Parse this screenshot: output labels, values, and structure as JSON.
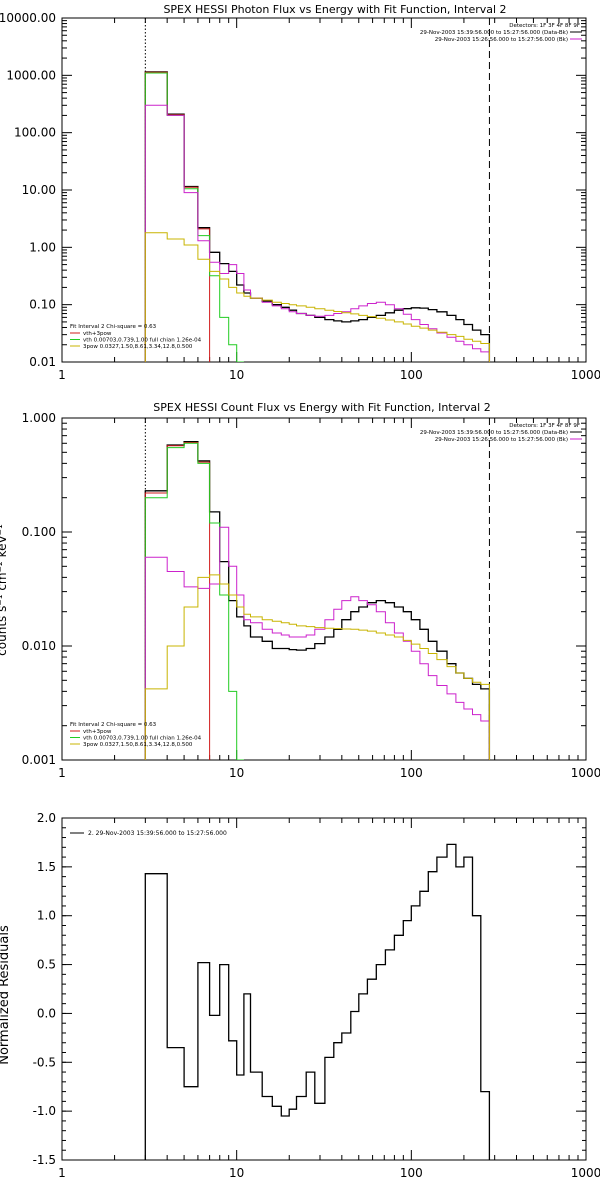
{
  "chart_data": [
    {
      "type": "line",
      "title": "SPEX HESSI Photon Flux vs Energy with Fit Function, Interval 2",
      "xscale": "log",
      "yscale": "log",
      "xlim": [
        1,
        1000
      ],
      "ylim": [
        0.01,
        10000
      ],
      "x_ticks": [
        {
          "v": 1,
          "label": "1"
        },
        {
          "v": 10,
          "label": "10"
        },
        {
          "v": 100,
          "label": "100"
        },
        {
          "v": 1000,
          "label": "1000"
        }
      ],
      "y_ticks": [
        {
          "v": 0.01,
          "label": "0.01"
        },
        {
          "v": 0.1,
          "label": "0.10"
        },
        {
          "v": 1,
          "label": "1.00"
        },
        {
          "v": 10,
          "label": "10.00"
        },
        {
          "v": 100,
          "label": "100.00"
        },
        {
          "v": 1000,
          "label": "1000.00"
        },
        {
          "v": 10000,
          "label": "10000.00"
        }
      ],
      "vlines": [
        {
          "x": 3,
          "style": "dotted"
        },
        {
          "x": 280,
          "style": "dashed"
        }
      ],
      "legend_top": [
        "Detectors: 1F 3F 4F 8F 9F",
        "29-Nov-2003 15:39:56.000 to 15:27:56.000 (Data-Bk)",
        "29-Nov-2003 15:26:56.000 to 15:27:56.000 (Bk)"
      ],
      "legend_bottom_title": "Fit Interval 2   Chi-square = 0.63",
      "legend_bottom": [
        {
          "label": "vth+3pow",
          "color": "#d11d1d"
        },
        {
          "label": "vth 0.00703,0.739,1.00  full chian 1.26e-04",
          "color": "#22cc22"
        },
        {
          "label": "3pow 0.0327,1.50,8.61,3.34,12.8,0.500",
          "color": "#c8b400"
        }
      ],
      "edges": [
        3,
        4,
        5,
        6,
        7,
        8,
        9,
        10,
        11,
        12,
        14,
        16,
        18,
        20,
        22,
        25,
        28,
        32,
        36,
        40,
        45,
        50,
        56,
        63,
        71,
        80,
        90,
        100,
        112,
        125,
        140,
        160,
        180,
        200,
        224,
        250,
        280
      ],
      "series": [
        {
          "color": "#000000",
          "width": 1.3,
          "values": [
            1150,
            210,
            11.5,
            2.2,
            0.82,
            0.52,
            0.38,
            0.22,
            0.16,
            0.13,
            0.115,
            0.1,
            0.09,
            0.08,
            0.07,
            0.065,
            0.06,
            0.055,
            0.052,
            0.05,
            0.052,
            0.055,
            0.06,
            0.065,
            0.072,
            0.08,
            0.085,
            0.088,
            0.087,
            0.082,
            0.075,
            0.065,
            0.055,
            0.045,
            0.036,
            0.03
          ]
        },
        {
          "color": "#d11d1d",
          "width": 1.0,
          "values": [
            1130,
            205,
            11.2,
            2.1,
            null,
            null,
            null,
            null,
            null,
            null,
            null,
            null,
            null,
            null,
            null,
            null,
            null,
            null,
            null,
            null,
            null,
            null,
            null,
            null,
            null,
            null,
            null,
            null,
            null,
            null,
            null,
            null,
            null,
            null,
            null,
            null
          ]
        },
        {
          "color": "#22cc22",
          "width": 1.0,
          "values": [
            1100,
            200,
            10.5,
            1.6,
            0.32,
            0.06,
            0.02,
            0.008,
            null,
            null,
            null,
            null,
            null,
            null,
            null,
            null,
            null,
            null,
            null,
            null,
            null,
            null,
            null,
            null,
            null,
            null,
            null,
            null,
            null,
            null,
            null,
            null,
            null,
            null,
            null,
            null
          ]
        },
        {
          "color": "#cc22cc",
          "width": 1.0,
          "values": [
            300,
            200,
            9,
            1.3,
            0.55,
            0.35,
            0.5,
            0.35,
            0.18,
            0.13,
            0.11,
            0.095,
            0.085,
            0.075,
            0.07,
            0.065,
            0.063,
            0.065,
            0.07,
            0.075,
            0.085,
            0.095,
            0.105,
            0.11,
            0.1,
            0.085,
            0.068,
            0.055,
            0.045,
            0.038,
            0.032,
            0.027,
            0.023,
            0.02,
            0.017,
            0.015
          ]
        },
        {
          "color": "#c8b400",
          "width": 1.0,
          "values": [
            1.8,
            1.4,
            1.1,
            0.62,
            0.38,
            0.28,
            0.2,
            0.16,
            0.14,
            0.13,
            0.12,
            0.11,
            0.105,
            0.1,
            0.095,
            0.09,
            0.085,
            0.08,
            0.076,
            0.072,
            0.069,
            0.065,
            0.062,
            0.058,
            0.054,
            0.05,
            0.046,
            0.042,
            0.039,
            0.036,
            0.033,
            0.03,
            0.028,
            0.025,
            0.023,
            0.021
          ]
        }
      ]
    },
    {
      "type": "line",
      "title": "SPEX HESSI Count Flux vs Energy with Fit Function, Interval 2",
      "ylabel": "counts s⁻¹ cm⁻² keV⁻¹",
      "xscale": "log",
      "yscale": "log",
      "xlim": [
        1,
        1000
      ],
      "ylim": [
        0.001,
        1
      ],
      "x_ticks": [
        {
          "v": 1,
          "label": "1"
        },
        {
          "v": 10,
          "label": "10"
        },
        {
          "v": 100,
          "label": "100"
        },
        {
          "v": 1000,
          "label": "1000"
        }
      ],
      "y_ticks": [
        {
          "v": 0.001,
          "label": "0.001"
        },
        {
          "v": 0.01,
          "label": "0.010"
        },
        {
          "v": 0.1,
          "label": "0.100"
        },
        {
          "v": 1,
          "label": "1.000"
        }
      ],
      "vlines": [
        {
          "x": 3,
          "style": "dotted"
        },
        {
          "x": 280,
          "style": "dashed"
        }
      ],
      "legend_top": [
        "Detectors: 1F 3F 4F 8F 9F",
        "29-Nov-2003 15:39:56.000 to 15:27:56.000 (Data-Bk)",
        "29-Nov-2003 15:26:56.000 to 15:27:56.000 (Bk)"
      ],
      "legend_bottom_title": "Fit Interval 2   Chi-square = 0.63",
      "legend_bottom": [
        {
          "label": "vth+3pow",
          "color": "#d11d1d"
        },
        {
          "label": "vth 0.00703,0.739,1.00  full chian 1.26e-04",
          "color": "#22cc22"
        },
        {
          "label": "3pow 0.0327,1.50,8.61,3.34,12.8,0.500",
          "color": "#c8b400"
        }
      ],
      "edges": [
        3,
        4,
        5,
        6,
        7,
        8,
        9,
        10,
        11,
        12,
        14,
        16,
        18,
        20,
        22,
        25,
        28,
        32,
        36,
        40,
        45,
        50,
        56,
        63,
        71,
        80,
        90,
        100,
        112,
        125,
        140,
        160,
        180,
        200,
        224,
        250,
        280
      ],
      "series": [
        {
          "color": "#000000",
          "width": 1.3,
          "values": [
            0.23,
            0.58,
            0.62,
            0.42,
            0.15,
            0.055,
            0.025,
            0.018,
            0.015,
            0.012,
            0.011,
            0.0095,
            0.0095,
            0.0093,
            0.0092,
            0.0095,
            0.0105,
            0.012,
            0.014,
            0.017,
            0.02,
            0.022,
            0.024,
            0.025,
            0.024,
            0.022,
            0.02,
            0.017,
            0.014,
            0.011,
            0.009,
            0.007,
            0.0058,
            0.0052,
            0.0046,
            0.0042
          ]
        },
        {
          "color": "#d11d1d",
          "width": 1.0,
          "values": [
            0.22,
            0.57,
            0.61,
            0.41,
            null,
            null,
            null,
            null,
            null,
            null,
            null,
            null,
            null,
            null,
            null,
            null,
            null,
            null,
            null,
            null,
            null,
            null,
            null,
            null,
            null,
            null,
            null,
            null,
            null,
            null,
            null,
            null,
            null,
            null,
            null,
            null
          ]
        },
        {
          "color": "#22cc22",
          "width": 1.0,
          "values": [
            0.2,
            0.55,
            0.6,
            0.4,
            0.12,
            0.028,
            0.004,
            0.0005,
            null,
            null,
            null,
            null,
            null,
            null,
            null,
            null,
            null,
            null,
            null,
            null,
            null,
            null,
            null,
            null,
            null,
            null,
            null,
            null,
            null,
            null,
            null,
            null,
            null,
            null,
            null,
            null
          ]
        },
        {
          "color": "#cc22cc",
          "width": 1.0,
          "values": [
            0.06,
            0.045,
            0.033,
            0.032,
            0.035,
            0.11,
            0.05,
            0.028,
            0.017,
            0.016,
            0.014,
            0.013,
            0.0125,
            0.012,
            0.012,
            0.0125,
            0.014,
            0.017,
            0.021,
            0.025,
            0.027,
            0.025,
            0.023,
            0.02,
            0.016,
            0.013,
            0.011,
            0.009,
            0.007,
            0.0055,
            0.0045,
            0.0038,
            0.0032,
            0.0028,
            0.0025,
            0.0022
          ]
        },
        {
          "color": "#c8b400",
          "width": 1.0,
          "values": [
            0.0042,
            0.01,
            0.022,
            0.04,
            0.042,
            0.035,
            0.028,
            0.022,
            0.019,
            0.018,
            0.017,
            0.0165,
            0.016,
            0.0155,
            0.015,
            0.0148,
            0.0145,
            0.0143,
            0.0142,
            0.0141,
            0.014,
            0.0138,
            0.0135,
            0.013,
            0.0125,
            0.012,
            0.0112,
            0.0104,
            0.0095,
            0.0086,
            0.0076,
            0.0066,
            0.0058,
            0.0052,
            0.0048,
            0.0046
          ]
        }
      ]
    },
    {
      "type": "line",
      "ylabel": "Normalized Residuals",
      "xscale": "log",
      "yscale": "linear",
      "xlim": [
        1,
        1000
      ],
      "ylim": [
        -1.5,
        2.0
      ],
      "x_ticks": [
        {
          "v": 1,
          "label": "1"
        },
        {
          "v": 10,
          "label": "10"
        },
        {
          "v": 100,
          "label": "100"
        },
        {
          "v": 1000,
          "label": "1000"
        }
      ],
      "y_ticks": [
        {
          "v": -1.5,
          "label": "-1.5"
        },
        {
          "v": -1.0,
          "label": "-1.0"
        },
        {
          "v": -0.5,
          "label": "-0.5"
        },
        {
          "v": 0.0,
          "label": "0.0"
        },
        {
          "v": 0.5,
          "label": "0.5"
        },
        {
          "v": 1.0,
          "label": "1.0"
        },
        {
          "v": 1.5,
          "label": "1.5"
        },
        {
          "v": 2.0,
          "label": "2.0"
        }
      ],
      "legend_top_left": "2. 29-Nov-2003 15:39:56.000 to 15:27:56.000",
      "edges": [
        3,
        4,
        5,
        6,
        7,
        8,
        9,
        10,
        11,
        12,
        14,
        16,
        18,
        20,
        22,
        25,
        28,
        32,
        36,
        40,
        45,
        50,
        56,
        63,
        71,
        80,
        90,
        100,
        112,
        125,
        140,
        160,
        180,
        200,
        224,
        250,
        280
      ],
      "series": [
        {
          "color": "#000000",
          "width": 1.3,
          "values": [
            1.43,
            -0.35,
            -0.75,
            0.52,
            -0.02,
            0.5,
            -0.28,
            -0.63,
            0.2,
            -0.6,
            -0.85,
            -0.95,
            -1.05,
            -0.98,
            -0.85,
            -0.6,
            -0.92,
            -0.45,
            -0.3,
            -0.2,
            0.02,
            0.2,
            0.35,
            0.5,
            0.65,
            0.8,
            0.95,
            1.1,
            1.25,
            1.45,
            1.6,
            1.73,
            1.5,
            1.6,
            1.0,
            -0.8
          ]
        }
      ]
    }
  ]
}
